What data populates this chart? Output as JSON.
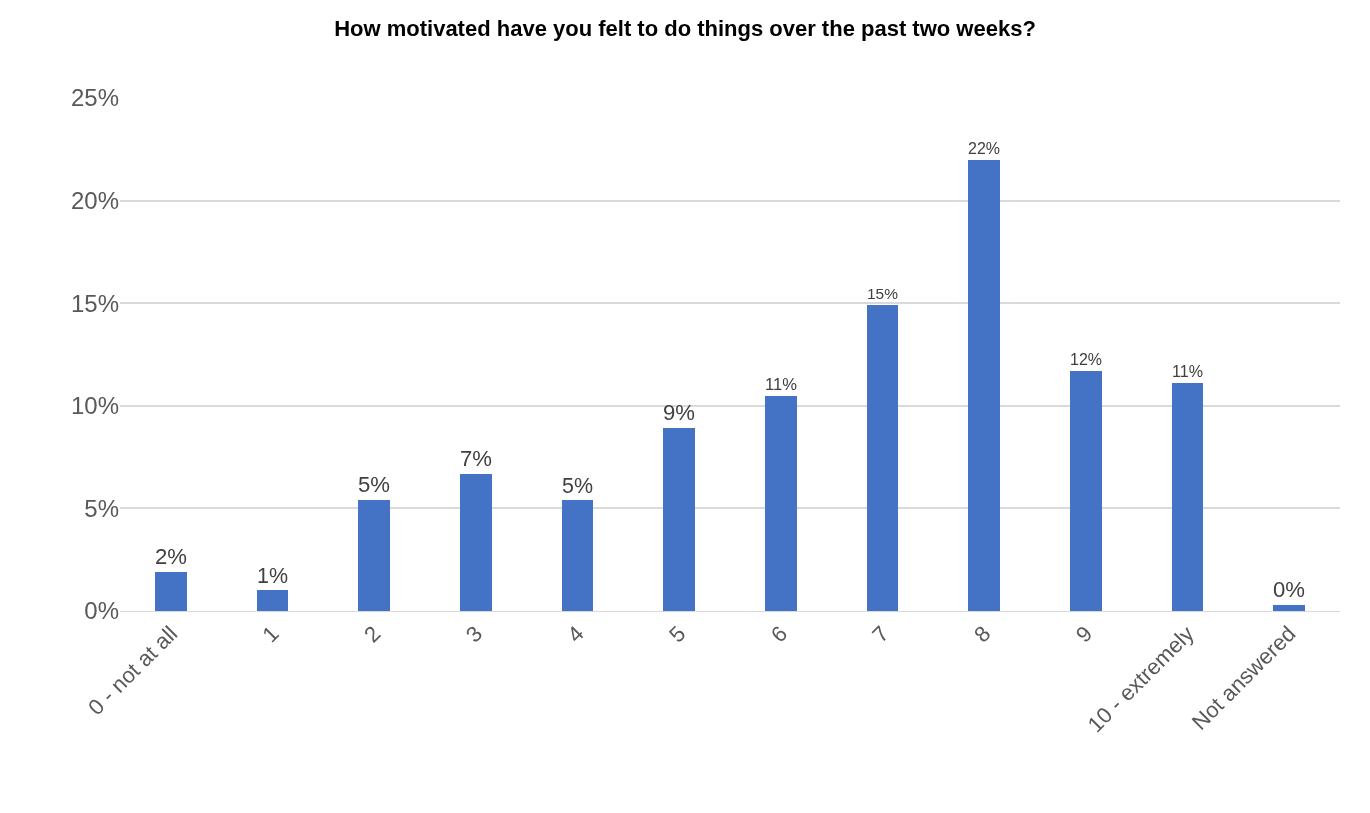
{
  "chart_data": {
    "type": "bar",
    "title": "How motivated have you felt to do things over the past two weeks?",
    "categories": [
      "0 - not at all",
      "1",
      "2",
      "3",
      "4",
      "5",
      "6",
      "7",
      "8",
      "9",
      "10 - extremely",
      "Not answered"
    ],
    "values": [
      1.9,
      1.0,
      5.4,
      6.7,
      5.4,
      8.9,
      10.5,
      14.9,
      22.0,
      11.7,
      11.1,
      0.3
    ],
    "value_labels": [
      "2%",
      "1%",
      "5%",
      "7%",
      "5%",
      "9%",
      "11%",
      "15%",
      "22%",
      "12%",
      "11%",
      "0%"
    ],
    "color": "#4472c4",
    "ylim": [
      0,
      25
    ],
    "yticks": [
      {
        "value": 0,
        "label": "0%"
      },
      {
        "value": 5,
        "label": "5%"
      },
      {
        "value": 10,
        "label": "10%"
      },
      {
        "value": 15,
        "label": "15%"
      },
      {
        "value": 20,
        "label": "20%"
      },
      {
        "value": 25,
        "label": "25%"
      }
    ],
    "grid": "y"
  }
}
